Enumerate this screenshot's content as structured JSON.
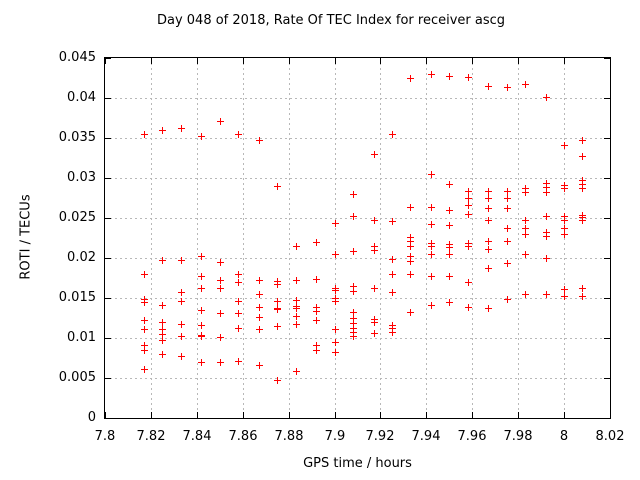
{
  "chart_data": {
    "type": "scatter",
    "title": "Day 048 of 2018, Rate Of TEC Index for receiver ascg",
    "xlabel": "GPS time / hours",
    "ylabel": "ROTI / TECUs",
    "xlim": [
      7.8,
      8.02
    ],
    "ylim": [
      0,
      0.045
    ],
    "x_ticks": [
      7.8,
      7.82,
      7.84,
      7.86,
      7.88,
      7.9,
      7.92,
      7.94,
      7.96,
      7.98,
      8.0,
      8.02
    ],
    "x_tick_labels": [
      "7.8",
      "7.82",
      "7.84",
      "7.86",
      "7.88",
      "7.9",
      "7.92",
      "7.94",
      "7.96",
      "7.98",
      "8",
      "8.02"
    ],
    "y_ticks": [
      0,
      0.005,
      0.01,
      0.015,
      0.02,
      0.025,
      0.03,
      0.035,
      0.04,
      0.045
    ],
    "y_tick_labels": [
      "0",
      "0.005",
      "0.01",
      "0.015",
      "0.02",
      "0.025",
      "0.03",
      "0.035",
      "0.04",
      "0.045"
    ],
    "grid": true,
    "legend": "none",
    "marker": {
      "shape": "plus",
      "color": "#ff0000",
      "size": 7
    },
    "series": [
      {
        "name": "ROTI",
        "points": [
          [
            7.817,
            0.0355
          ],
          [
            7.817,
            0.018
          ],
          [
            7.817,
            0.0149
          ],
          [
            7.817,
            0.0145
          ],
          [
            7.817,
            0.0122
          ],
          [
            7.817,
            0.0111
          ],
          [
            7.817,
            0.0091
          ],
          [
            7.817,
            0.0085
          ],
          [
            7.817,
            0.0061
          ],
          [
            7.825,
            0.036
          ],
          [
            7.825,
            0.0198
          ],
          [
            7.825,
            0.0141
          ],
          [
            7.825,
            0.012
          ],
          [
            7.825,
            0.0111
          ],
          [
            7.825,
            0.0105
          ],
          [
            7.825,
            0.0098
          ],
          [
            7.825,
            0.008
          ],
          [
            7.833,
            0.0362
          ],
          [
            7.833,
            0.0198
          ],
          [
            7.833,
            0.0157
          ],
          [
            7.833,
            0.0146
          ],
          [
            7.833,
            0.0118
          ],
          [
            7.833,
            0.0102
          ],
          [
            7.833,
            0.0078
          ],
          [
            7.842,
            0.0353
          ],
          [
            7.842,
            0.0203
          ],
          [
            7.842,
            0.0178
          ],
          [
            7.842,
            0.0162
          ],
          [
            7.842,
            0.0135
          ],
          [
            7.842,
            0.0116
          ],
          [
            7.842,
            0.0104
          ],
          [
            7.842,
            0.0102
          ],
          [
            7.842,
            0.007
          ],
          [
            7.85,
            0.0371
          ],
          [
            7.85,
            0.0195
          ],
          [
            7.85,
            0.0173
          ],
          [
            7.85,
            0.0162
          ],
          [
            7.85,
            0.0131
          ],
          [
            7.85,
            0.0101
          ],
          [
            7.85,
            0.007
          ],
          [
            7.858,
            0.0355
          ],
          [
            7.858,
            0.018
          ],
          [
            7.858,
            0.017
          ],
          [
            7.858,
            0.0146
          ],
          [
            7.858,
            0.0131
          ],
          [
            7.858,
            0.0112
          ],
          [
            7.858,
            0.0071
          ],
          [
            7.867,
            0.0348
          ],
          [
            7.867,
            0.0172
          ],
          [
            7.867,
            0.0155
          ],
          [
            7.867,
            0.0139
          ],
          [
            7.867,
            0.0126
          ],
          [
            7.867,
            0.0111
          ],
          [
            7.867,
            0.0066
          ],
          [
            7.875,
            0.029
          ],
          [
            7.875,
            0.0171
          ],
          [
            7.875,
            0.0168
          ],
          [
            7.875,
            0.0146
          ],
          [
            7.875,
            0.0138
          ],
          [
            7.875,
            0.0136
          ],
          [
            7.875,
            0.0115
          ],
          [
            7.875,
            0.0047
          ],
          [
            7.883,
            0.0215
          ],
          [
            7.883,
            0.0172
          ],
          [
            7.883,
            0.0148
          ],
          [
            7.883,
            0.014
          ],
          [
            7.883,
            0.0137
          ],
          [
            7.883,
            0.0128
          ],
          [
            7.883,
            0.0118
          ],
          [
            7.883,
            0.0059
          ],
          [
            7.892,
            0.022
          ],
          [
            7.892,
            0.0174
          ],
          [
            7.892,
            0.0139
          ],
          [
            7.892,
            0.0134
          ],
          [
            7.892,
            0.0123
          ],
          [
            7.892,
            0.0091
          ],
          [
            7.892,
            0.0085
          ],
          [
            7.9,
            0.0244
          ],
          [
            7.9,
            0.0205
          ],
          [
            7.9,
            0.0163
          ],
          [
            7.9,
            0.016
          ],
          [
            7.9,
            0.015
          ],
          [
            7.9,
            0.0146
          ],
          [
            7.9,
            0.0111
          ],
          [
            7.9,
            0.0095
          ],
          [
            7.9,
            0.0083
          ],
          [
            7.908,
            0.028
          ],
          [
            7.908,
            0.0253
          ],
          [
            7.908,
            0.0209
          ],
          [
            7.908,
            0.0165
          ],
          [
            7.908,
            0.0159
          ],
          [
            7.908,
            0.0133
          ],
          [
            7.908,
            0.0125
          ],
          [
            7.908,
            0.0119
          ],
          [
            7.908,
            0.0113
          ],
          [
            7.908,
            0.0108
          ],
          [
            7.908,
            0.0103
          ],
          [
            7.917,
            0.033
          ],
          [
            7.917,
            0.0247
          ],
          [
            7.917,
            0.0215
          ],
          [
            7.917,
            0.021
          ],
          [
            7.917,
            0.0162
          ],
          [
            7.917,
            0.0124
          ],
          [
            7.917,
            0.012
          ],
          [
            7.917,
            0.0106
          ],
          [
            7.925,
            0.0355
          ],
          [
            7.925,
            0.0246
          ],
          [
            7.925,
            0.0199
          ],
          [
            7.925,
            0.018
          ],
          [
            7.925,
            0.0157
          ],
          [
            7.925,
            0.0116
          ],
          [
            7.925,
            0.0113
          ],
          [
            7.925,
            0.0107
          ],
          [
            7.933,
            0.0425
          ],
          [
            7.933,
            0.0264
          ],
          [
            7.933,
            0.0226
          ],
          [
            7.933,
            0.0221
          ],
          [
            7.933,
            0.0215
          ],
          [
            7.933,
            0.0202
          ],
          [
            7.933,
            0.0196
          ],
          [
            7.933,
            0.018
          ],
          [
            7.933,
            0.0133
          ],
          [
            7.942,
            0.043
          ],
          [
            7.942,
            0.0305
          ],
          [
            7.942,
            0.0264
          ],
          [
            7.942,
            0.0243
          ],
          [
            7.942,
            0.0219
          ],
          [
            7.942,
            0.0215
          ],
          [
            7.942,
            0.0205
          ],
          [
            7.942,
            0.0178
          ],
          [
            7.942,
            0.0141
          ],
          [
            7.95,
            0.0427
          ],
          [
            7.95,
            0.0293
          ],
          [
            7.95,
            0.026
          ],
          [
            7.95,
            0.0241
          ],
          [
            7.95,
            0.0218
          ],
          [
            7.95,
            0.0214
          ],
          [
            7.95,
            0.0205
          ],
          [
            7.95,
            0.0178
          ],
          [
            7.95,
            0.0145
          ],
          [
            7.958,
            0.0426
          ],
          [
            7.958,
            0.0284
          ],
          [
            7.958,
            0.0275
          ],
          [
            7.958,
            0.0266
          ],
          [
            7.958,
            0.0255
          ],
          [
            7.958,
            0.0219
          ],
          [
            7.958,
            0.0215
          ],
          [
            7.958,
            0.017
          ],
          [
            7.958,
            0.0139
          ],
          [
            7.967,
            0.0415
          ],
          [
            7.967,
            0.0284
          ],
          [
            7.967,
            0.0275
          ],
          [
            7.967,
            0.0262
          ],
          [
            7.967,
            0.0248
          ],
          [
            7.967,
            0.0221
          ],
          [
            7.967,
            0.0211
          ],
          [
            7.967,
            0.0187
          ],
          [
            7.967,
            0.0137
          ],
          [
            7.975,
            0.0414
          ],
          [
            7.975,
            0.0284
          ],
          [
            7.975,
            0.0275
          ],
          [
            7.975,
            0.0262
          ],
          [
            7.975,
            0.0238
          ],
          [
            7.975,
            0.0221
          ],
          [
            7.975,
            0.0194
          ],
          [
            7.975,
            0.0149
          ],
          [
            7.983,
            0.0417
          ],
          [
            7.983,
            0.0288
          ],
          [
            7.983,
            0.0282
          ],
          [
            7.983,
            0.0248
          ],
          [
            7.983,
            0.0238
          ],
          [
            7.983,
            0.023
          ],
          [
            7.983,
            0.0205
          ],
          [
            7.983,
            0.0155
          ],
          [
            7.992,
            0.0401
          ],
          [
            7.992,
            0.0294
          ],
          [
            7.992,
            0.0289
          ],
          [
            7.992,
            0.0283
          ],
          [
            7.992,
            0.0253
          ],
          [
            7.992,
            0.0233
          ],
          [
            7.992,
            0.0228
          ],
          [
            7.992,
            0.02
          ],
          [
            7.992,
            0.0155
          ],
          [
            8.0,
            0.0341
          ],
          [
            8.0,
            0.0291
          ],
          [
            8.0,
            0.0288
          ],
          [
            8.0,
            0.0253
          ],
          [
            8.0,
            0.0247
          ],
          [
            8.0,
            0.0238
          ],
          [
            8.0,
            0.023
          ],
          [
            8.0,
            0.0161
          ],
          [
            8.0,
            0.0153
          ],
          [
            8.008,
            0.0347
          ],
          [
            8.008,
            0.0328
          ],
          [
            8.008,
            0.0297
          ],
          [
            8.008,
            0.0292
          ],
          [
            8.008,
            0.0287
          ],
          [
            8.008,
            0.0254
          ],
          [
            8.008,
            0.0251
          ],
          [
            8.008,
            0.0247
          ],
          [
            8.008,
            0.0163
          ],
          [
            8.008,
            0.0153
          ]
        ]
      }
    ]
  }
}
